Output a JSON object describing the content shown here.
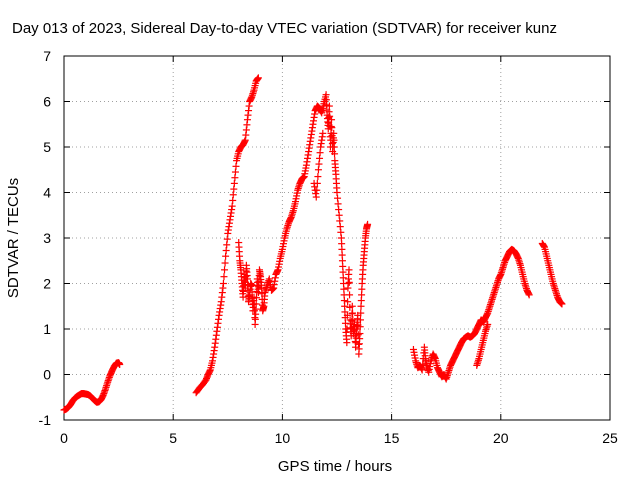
{
  "chart_data": {
    "type": "scatter",
    "title": "Day 013 of 2023, Sidereal Day-to-day VTEC variation (SDTVAR) for receiver kunz",
    "xlabel": "GPS time / hours",
    "ylabel": "SDTVAR / TECUs",
    "xlim": [
      0,
      25
    ],
    "ylim": [
      -1,
      7
    ],
    "xticks": [
      "0",
      "5",
      "10",
      "15",
      "20",
      "25"
    ],
    "yticks": [
      "-1",
      "0",
      "1",
      "2",
      "3",
      "4",
      "5",
      "6",
      "7"
    ],
    "grid": true,
    "marker": "plus",
    "color": "#ff0000",
    "series": [
      {
        "segments": [
          [
            [
              0.0,
              -0.78
            ],
            [
              0.1,
              -0.76
            ],
            [
              0.2,
              -0.72
            ],
            [
              0.3,
              -0.66
            ],
            [
              0.4,
              -0.58
            ],
            [
              0.5,
              -0.52
            ],
            [
              0.6,
              -0.48
            ],
            [
              0.7,
              -0.45
            ],
            [
              0.8,
              -0.42
            ],
            [
              0.9,
              -0.42
            ],
            [
              1.0,
              -0.43
            ],
            [
              1.1,
              -0.44
            ],
            [
              1.2,
              -0.47
            ],
            [
              1.3,
              -0.52
            ],
            [
              1.4,
              -0.57
            ],
            [
              1.5,
              -0.61
            ],
            [
              1.6,
              -0.6
            ],
            [
              1.7,
              -0.55
            ],
            [
              1.8,
              -0.45
            ],
            [
              1.9,
              -0.32
            ],
            [
              2.0,
              -0.17
            ],
            [
              2.1,
              -0.03
            ],
            [
              2.2,
              0.08
            ],
            [
              2.3,
              0.18
            ],
            [
              2.4,
              0.25
            ],
            [
              2.5,
              0.26
            ],
            [
              2.55,
              0.22
            ]
          ],
          [
            [
              6.05,
              -0.4
            ],
            [
              6.2,
              -0.3
            ],
            [
              6.35,
              -0.22
            ],
            [
              6.5,
              -0.12
            ],
            [
              6.6,
              0.0
            ],
            [
              6.7,
              0.1
            ],
            [
              6.8,
              0.3
            ],
            [
              6.9,
              0.6
            ],
            [
              7.0,
              0.95
            ],
            [
              7.1,
              1.3
            ],
            [
              7.2,
              1.6
            ],
            [
              7.3,
              2.0
            ],
            [
              7.4,
              2.6
            ],
            [
              7.5,
              3.1
            ],
            [
              7.6,
              3.4
            ],
            [
              7.7,
              3.7
            ],
            [
              7.8,
              4.2
            ],
            [
              7.9,
              4.7
            ],
            [
              8.0,
              4.9
            ],
            [
              8.1,
              5.0
            ],
            [
              8.2,
              5.05
            ],
            [
              8.3,
              5.15
            ],
            [
              8.4,
              5.6
            ],
            [
              8.5,
              6.0
            ],
            [
              8.6,
              6.1
            ],
            [
              8.7,
              6.25
            ],
            [
              8.8,
              6.45
            ],
            [
              8.9,
              6.52
            ]
          ],
          [
            [
              8.0,
              2.9
            ],
            [
              8.05,
              2.5
            ],
            [
              8.1,
              2.3
            ],
            [
              8.15,
              2.0
            ],
            [
              8.2,
              1.7
            ],
            [
              8.25,
              2.2
            ],
            [
              8.3,
              1.9
            ],
            [
              8.35,
              2.4
            ],
            [
              8.4,
              2.1
            ],
            [
              8.45,
              1.6
            ],
            [
              8.5,
              1.75
            ],
            [
              8.55,
              2.0
            ],
            [
              8.6,
              1.95
            ],
            [
              8.65,
              1.4
            ],
            [
              8.7,
              1.7
            ],
            [
              8.75,
              1.1
            ],
            [
              8.8,
              1.55
            ],
            [
              8.85,
              2.1
            ],
            [
              8.9,
              1.8
            ],
            [
              8.95,
              2.3
            ],
            [
              9.0,
              2.15
            ],
            [
              9.05,
              1.9
            ],
            [
              9.1,
              1.4
            ],
            [
              9.15,
              1.5
            ],
            [
              9.2,
              1.8
            ],
            [
              9.3,
              1.95
            ],
            [
              9.4,
              2.1
            ],
            [
              9.5,
              1.85
            ],
            [
              9.6,
              1.9
            ],
            [
              9.7,
              2.2
            ],
            [
              9.8,
              2.3
            ],
            [
              9.9,
              2.55
            ],
            [
              10.0,
              2.75
            ],
            [
              10.1,
              3.0
            ],
            [
              10.2,
              3.2
            ],
            [
              10.3,
              3.35
            ],
            [
              10.4,
              3.45
            ],
            [
              10.5,
              3.6
            ],
            [
              10.6,
              3.8
            ],
            [
              10.7,
              4.05
            ],
            [
              10.8,
              4.2
            ],
            [
              10.9,
              4.3
            ],
            [
              11.0,
              4.35
            ],
            [
              11.1,
              4.6
            ],
            [
              11.2,
              4.9
            ],
            [
              11.3,
              5.2
            ],
            [
              11.4,
              5.5
            ],
            [
              11.5,
              5.8
            ],
            [
              11.6,
              5.9
            ],
            [
              11.7,
              5.85
            ],
            [
              11.8,
              5.75
            ],
            [
              11.9,
              5.95
            ],
            [
              12.0,
              6.15
            ],
            [
              12.05,
              5.7
            ],
            [
              12.1,
              5.4
            ],
            [
              12.15,
              5.9
            ],
            [
              12.2,
              5.0
            ],
            [
              12.25,
              5.6
            ],
            [
              12.3,
              4.9
            ],
            [
              12.35,
              5.3
            ],
            [
              12.4,
              4.7
            ],
            [
              12.45,
              4.4
            ],
            [
              12.5,
              4.0
            ],
            [
              12.6,
              3.5
            ],
            [
              12.7,
              3.0
            ],
            [
              12.75,
              2.5
            ],
            [
              12.8,
              2.0
            ],
            [
              12.85,
              1.5
            ],
            [
              12.9,
              1.0
            ],
            [
              12.95,
              0.7
            ],
            [
              13.0,
              1.9
            ],
            [
              13.05,
              2.3
            ],
            [
              13.1,
              1.2
            ],
            [
              13.15,
              0.85
            ],
            [
              13.2,
              1.5
            ],
            [
              13.25,
              0.9
            ],
            [
              13.3,
              1.1
            ],
            [
              13.35,
              0.6
            ],
            [
              13.4,
              1.0
            ],
            [
              13.45,
              1.3
            ],
            [
              13.5,
              0.45
            ],
            [
              13.55,
              0.9
            ],
            [
              13.6,
              1.5
            ],
            [
              13.65,
              2.0
            ],
            [
              13.7,
              2.4
            ],
            [
              13.75,
              2.7
            ],
            [
              13.8,
              3.0
            ],
            [
              13.85,
              3.2
            ],
            [
              13.9,
              3.3
            ]
          ],
          [
            [
              11.45,
              4.2
            ],
            [
              11.55,
              3.9
            ],
            [
              11.65,
              4.5
            ],
            [
              11.75,
              5.0
            ],
            [
              11.85,
              5.3
            ]
          ],
          [
            [
              16.0,
              0.55
            ],
            [
              16.1,
              0.3
            ],
            [
              16.2,
              0.15
            ],
            [
              16.3,
              0.2
            ],
            [
              16.4,
              0.1
            ],
            [
              16.5,
              0.6
            ],
            [
              16.55,
              0.35
            ],
            [
              16.6,
              0.2
            ],
            [
              16.7,
              0.05
            ],
            [
              16.8,
              0.3
            ],
            [
              16.9,
              0.45
            ],
            [
              17.0,
              0.35
            ],
            [
              17.1,
              0.15
            ],
            [
              17.2,
              0.05
            ],
            [
              17.3,
              -0.05
            ],
            [
              17.4,
              0.0
            ],
            [
              17.5,
              -0.1
            ],
            [
              17.6,
              0.05
            ],
            [
              17.7,
              0.2
            ],
            [
              17.8,
              0.3
            ],
            [
              17.9,
              0.4
            ],
            [
              18.0,
              0.5
            ],
            [
              18.1,
              0.6
            ],
            [
              18.2,
              0.7
            ],
            [
              18.3,
              0.78
            ],
            [
              18.4,
              0.82
            ],
            [
              18.5,
              0.85
            ],
            [
              18.6,
              0.82
            ],
            [
              18.7,
              0.85
            ],
            [
              18.8,
              0.9
            ],
            [
              18.9,
              1.0
            ],
            [
              19.0,
              1.1
            ],
            [
              19.1,
              1.2
            ],
            [
              19.2,
              1.15
            ],
            [
              19.3,
              1.25
            ],
            [
              19.4,
              1.35
            ],
            [
              19.5,
              1.5
            ],
            [
              19.6,
              1.65
            ],
            [
              19.7,
              1.8
            ],
            [
              19.8,
              1.95
            ],
            [
              19.9,
              2.1
            ],
            [
              20.0,
              2.2
            ],
            [
              20.1,
              2.35
            ],
            [
              20.2,
              2.5
            ],
            [
              20.3,
              2.6
            ],
            [
              20.4,
              2.7
            ],
            [
              20.5,
              2.75
            ],
            [
              20.6,
              2.72
            ],
            [
              20.7,
              2.65
            ],
            [
              20.8,
              2.55
            ],
            [
              20.9,
              2.4
            ],
            [
              21.0,
              2.2
            ],
            [
              21.1,
              2.0
            ],
            [
              21.2,
              1.85
            ],
            [
              21.3,
              1.75
            ]
          ],
          [
            [
              18.9,
              0.2
            ],
            [
              19.0,
              0.35
            ],
            [
              19.1,
              0.55
            ],
            [
              19.2,
              0.75
            ],
            [
              19.3,
              0.95
            ],
            [
              19.4,
              1.1
            ]
          ],
          [
            [
              21.9,
              2.88
            ],
            [
              22.0,
              2.8
            ],
            [
              22.1,
              2.6
            ],
            [
              22.2,
              2.4
            ],
            [
              22.3,
              2.2
            ],
            [
              22.4,
              2.0
            ],
            [
              22.5,
              1.85
            ],
            [
              22.6,
              1.7
            ],
            [
              22.7,
              1.6
            ],
            [
              22.8,
              1.55
            ]
          ]
        ]
      }
    ]
  }
}
